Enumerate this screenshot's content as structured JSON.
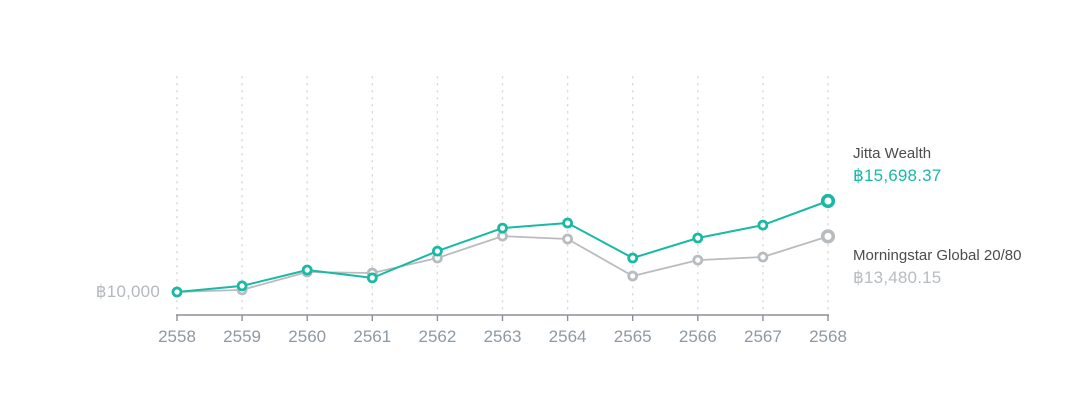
{
  "chart_data": {
    "type": "line",
    "x": [
      "2558",
      "2559",
      "2560",
      "2561",
      "2562",
      "2563",
      "2564",
      "2565",
      "2566",
      "2567",
      "2568"
    ],
    "series": [
      {
        "name": "Jitta Wealth",
        "color": "#19b9a6",
        "final_label": "฿15,698.37",
        "values": [
          10000,
          10380,
          11380,
          10880,
          12560,
          14000,
          14320,
          12130,
          13380,
          14190,
          15698.37
        ]
      },
      {
        "name": "Morningstar Global 20/80",
        "color": "#b9bcbf",
        "final_label": "฿13,480.15",
        "values": [
          10000,
          10130,
          11250,
          11190,
          12130,
          13500,
          13320,
          11000,
          12000,
          12190,
          13480.15
        ]
      }
    ],
    "baseline_label": "฿10,000",
    "baseline_value": 10000,
    "ylim": [
      10000,
      16500
    ],
    "grid": "vertical-dashed",
    "legend_position": "right",
    "colors": {
      "accent_teal": "#19b9a6",
      "comparison_gray": "#b9bcbf",
      "axis_line": "#8b9095",
      "axis_label": "#8e99a3",
      "gridline": "#dadcde",
      "baseline_label": "#b4b9be",
      "legend_name": "#4c4c4c",
      "legend_value_gray": "#b8bcc0"
    }
  }
}
